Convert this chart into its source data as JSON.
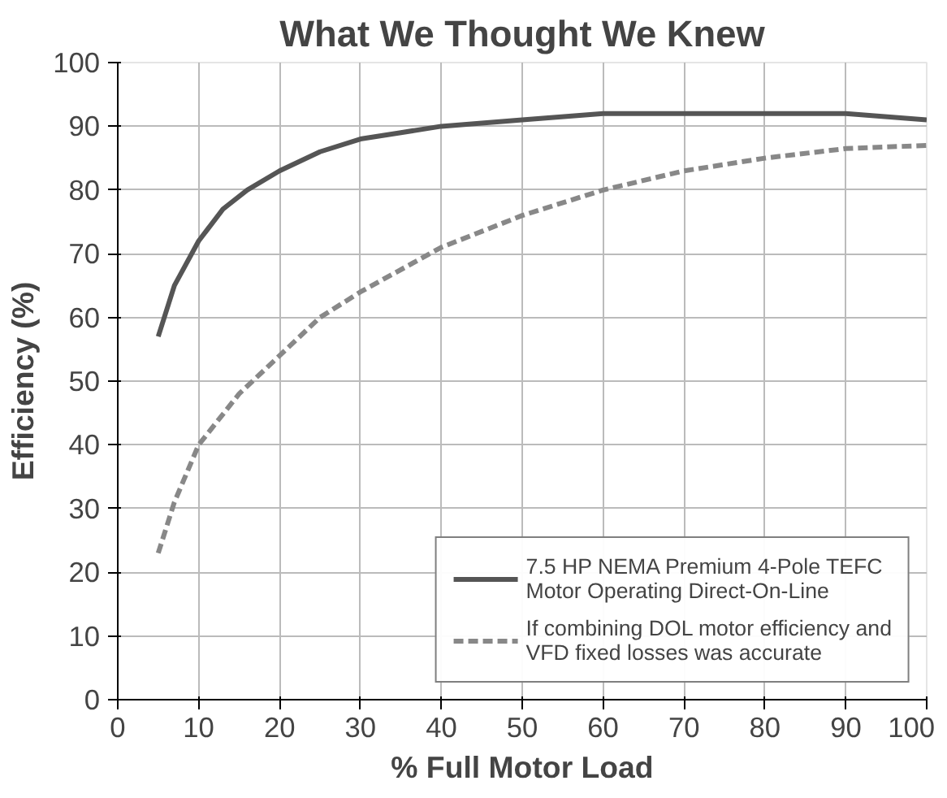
{
  "chart_data": {
    "type": "line",
    "title": "What We Thought We Knew",
    "xlabel": "% Full Motor Load",
    "ylabel": "Efficiency (%)",
    "xlim": [
      0,
      100
    ],
    "ylim": [
      0,
      100
    ],
    "xticks": [
      0,
      10,
      20,
      30,
      40,
      50,
      60,
      70,
      80,
      90,
      100
    ],
    "yticks": [
      0,
      10,
      20,
      30,
      40,
      50,
      60,
      70,
      80,
      90,
      100
    ],
    "grid": true,
    "legend": "bottom right",
    "series": [
      {
        "name": "7.5 HP NEMA Premium 4-Pole TEFC\nMotor Operating Direct-On-Line",
        "color": "#555555",
        "line_style": "solid",
        "x": [
          5,
          7,
          10,
          13,
          16,
          20,
          25,
          30,
          35,
          40,
          50,
          60,
          70,
          80,
          90,
          100
        ],
        "values": [
          57,
          65,
          72,
          77,
          80,
          83,
          86,
          88,
          89,
          90,
          91,
          92,
          92,
          92,
          92,
          91
        ]
      },
      {
        "name": "If combining DOL motor efficiency and\nVFD fixed losses was accurate",
        "color": "#888888",
        "line_style": "dashed",
        "x": [
          5,
          7,
          10,
          15,
          20,
          25,
          30,
          40,
          50,
          60,
          70,
          80,
          90,
          100
        ],
        "values": [
          23,
          31,
          40,
          48,
          54,
          60,
          64,
          71,
          76,
          80,
          83,
          85,
          86.5,
          87
        ]
      }
    ]
  }
}
